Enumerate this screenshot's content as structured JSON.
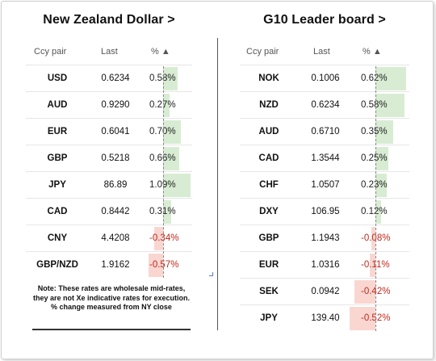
{
  "left_panel": {
    "title": "New Zealand Dollar >",
    "headers": {
      "pair": "Ccy pair",
      "last": "Last",
      "pct": "% ▲"
    },
    "rows": [
      {
        "pair": "USD",
        "last": "0.6234",
        "pct": "0.58%",
        "change": 0.58
      },
      {
        "pair": "AUD",
        "last": "0.9290",
        "pct": "0.27%",
        "change": 0.27
      },
      {
        "pair": "EUR",
        "last": "0.6041",
        "pct": "0.70%",
        "change": 0.7
      },
      {
        "pair": "GBP",
        "last": "0.5218",
        "pct": "0.66%",
        "change": 0.66
      },
      {
        "pair": "JPY",
        "last": "86.89",
        "pct": "1.09%",
        "change": 1.09
      },
      {
        "pair": "CAD",
        "last": "0.8442",
        "pct": "0.31%",
        "change": 0.31
      },
      {
        "pair": "CNY",
        "last": "4.4208",
        "pct": "-0.34%",
        "change": -0.34
      },
      {
        "pair": "GBP/NZD",
        "last": "1.9162",
        "pct": "-0.57%",
        "change": -0.57
      }
    ],
    "note": "Note: These rates are wholesale mid-rates, they are not Xe indicative rates for execution.\n% change measured from NY close"
  },
  "right_panel": {
    "title": "G10 Leader board >",
    "headers": {
      "pair": "Ccy pair",
      "last": "Last",
      "pct": "% ▲"
    },
    "rows": [
      {
        "pair": "NOK",
        "last": "0.1006",
        "pct": "0.62%",
        "change": 0.62
      },
      {
        "pair": "NZD",
        "last": "0.6234",
        "pct": "0.58%",
        "change": 0.58
      },
      {
        "pair": "AUD",
        "last": "0.6710",
        "pct": "0.35%",
        "change": 0.35
      },
      {
        "pair": "CAD",
        "last": "1.3544",
        "pct": "0.25%",
        "change": 0.25
      },
      {
        "pair": "CHF",
        "last": "1.0507",
        "pct": "0.23%",
        "change": 0.23
      },
      {
        "pair": "DXY",
        "last": "106.95",
        "pct": "0.12%",
        "change": 0.12
      },
      {
        "pair": "GBP",
        "last": "1.1943",
        "pct": "-0.08%",
        "change": -0.08
      },
      {
        "pair": "EUR",
        "last": "1.0316",
        "pct": "-0.11%",
        "change": -0.11
      },
      {
        "pair": "SEK",
        "last": "0.0942",
        "pct": "-0.42%",
        "change": -0.42
      },
      {
        "pair": "JPY",
        "last": "139.40",
        "pct": "-0.52%",
        "change": -0.52
      }
    ]
  },
  "colors": {
    "positive_bar": "#d8ecd3",
    "negative_bar": "#fad6d1",
    "negative_text": "#c0281c"
  }
}
